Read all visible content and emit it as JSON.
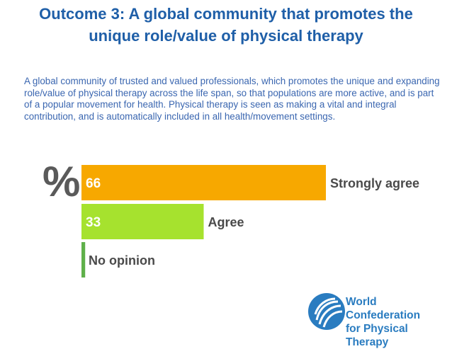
{
  "slide": {
    "title_line1": "Outcome 3: A global community that promotes the",
    "title_line2": "unique role/value of physical therapy",
    "description": "A global community of trusted and valued professionals, which promotes the unique and expanding role/value of physical therapy across the life span, so that populations are more active, and is part of a popular movement for health. Physical therapy is seen as making a vital and integral contribution, and is automatically included in all health/movement settings."
  },
  "chart_data": {
    "type": "bar",
    "orientation": "horizontal",
    "unit_label": "%",
    "categories": [
      "Strongly agree",
      "Agree",
      "No opinion"
    ],
    "values": [
      66,
      33,
      1
    ],
    "colors": [
      "#f7a800",
      "#a6e22e",
      "#5fb04a"
    ],
    "value_label_color": "#ffffff",
    "category_label_color": "#4a4a4a",
    "xlim": [
      0,
      66
    ],
    "title": "",
    "xlabel": "",
    "ylabel": ""
  },
  "logo": {
    "line1": "World Confederation",
    "line2": "for Physical Therapy",
    "color": "#2a7cc0"
  }
}
